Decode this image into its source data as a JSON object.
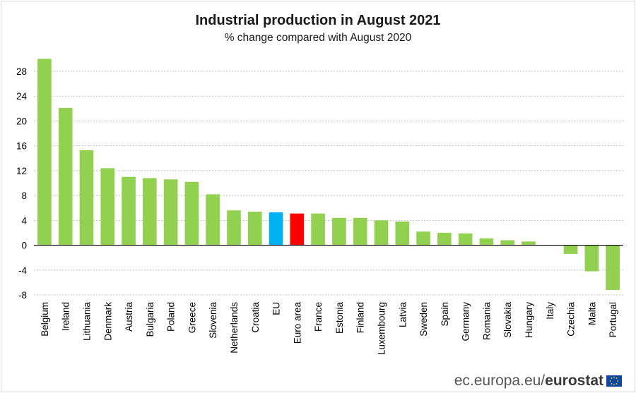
{
  "chart_data": {
    "type": "bar",
    "title": "Industrial production in August 2021",
    "subtitle": "% change compared with August 2020",
    "categories": [
      "Belgium",
      "Ireland",
      "Lithuania",
      "Denmark",
      "Austria",
      "Bulgaria",
      "Poland",
      "Greece",
      "Slovenia",
      "Netherlands",
      "Croatia",
      "EU",
      "Euro area",
      "France",
      "Estonia",
      "Finland",
      "Luxembourg",
      "Latvia",
      "Sweden",
      "Spain",
      "Germany",
      "Romania",
      "Slovakia",
      "Hungary",
      "Italy",
      "Czechia",
      "Malta",
      "Portugal"
    ],
    "values": [
      30.0,
      22.1,
      15.3,
      12.4,
      11.0,
      10.8,
      10.6,
      10.2,
      8.2,
      5.6,
      5.4,
      5.3,
      5.1,
      5.1,
      4.4,
      4.4,
      4.0,
      3.8,
      2.2,
      2.0,
      1.9,
      1.1,
      0.8,
      0.6,
      0.0,
      -1.4,
      -4.2,
      -7.2
    ],
    "ylim": [
      -8,
      28
    ],
    "yticks": [
      -8,
      -4,
      0,
      4,
      8,
      12,
      16,
      20,
      24,
      28
    ],
    "grid": true,
    "xlabel": "",
    "ylabel": "",
    "colors": {
      "default": "#92d050",
      "EU": "#00b0f0",
      "Euro area": "#ff0000",
      "grid": "#bfbfbf",
      "axis": "#000000"
    }
  },
  "footer": {
    "source_prefix": "ec.europa.eu/",
    "source_brand": "eurostat"
  }
}
